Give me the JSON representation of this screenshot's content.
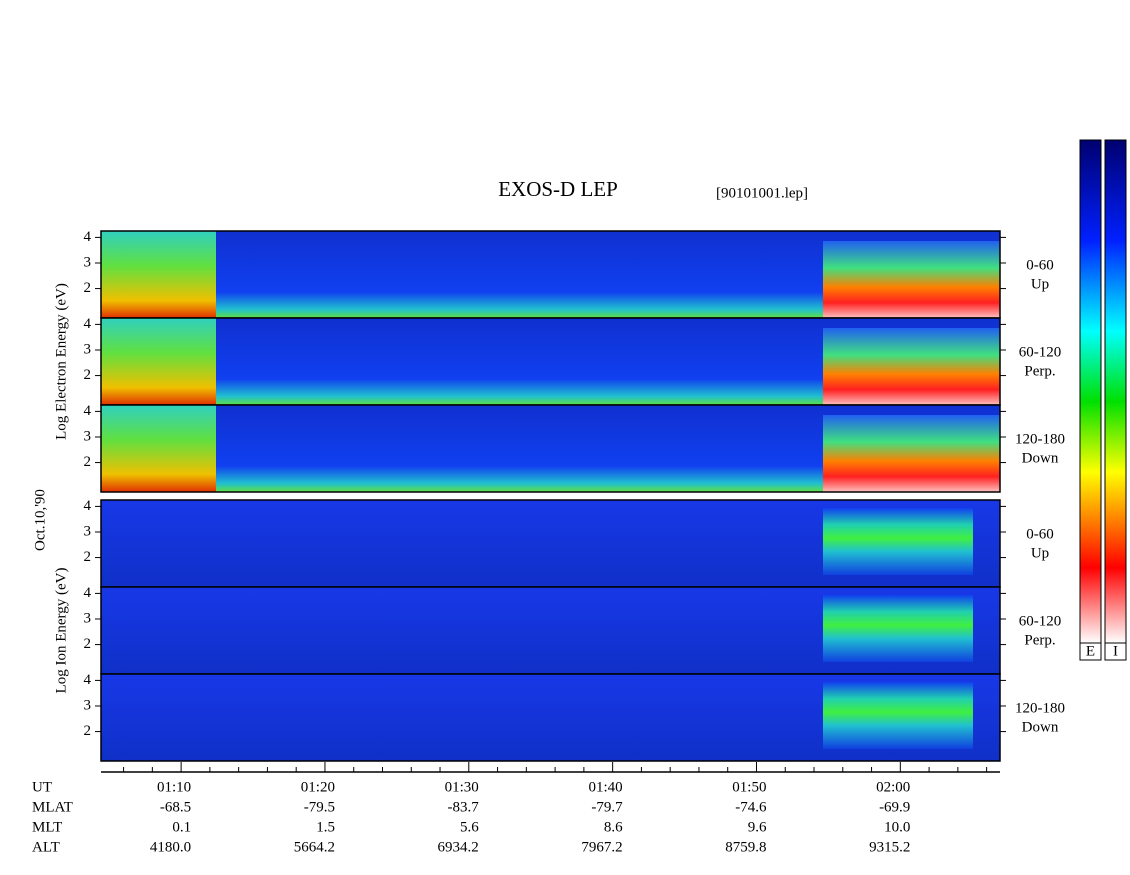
{
  "chart_data": {
    "type": "spectrogram",
    "title": "EXOS-D LEP",
    "subtitle": "[90101001.lep]",
    "date_label": "Oct.10,'90",
    "panel_groups": [
      {
        "ylabel": "Log Electron Energy (eV)",
        "panels": [
          {
            "labels": [
              "0-60",
              "Up"
            ]
          },
          {
            "labels": [
              "60-120",
              "Perp."
            ]
          },
          {
            "labels": [
              "120-180",
              "Down"
            ]
          }
        ]
      },
      {
        "ylabel": "Log Ion Energy (eV)",
        "panels": [
          {
            "labels": [
              "0-60",
              "Up"
            ]
          },
          {
            "labels": [
              "60-120",
              "Perp."
            ]
          },
          {
            "labels": [
              "120-180",
              "Down"
            ]
          }
        ]
      }
    ],
    "ylim": [
      0.85,
      4.25
    ],
    "yticks": [
      2,
      3,
      4
    ],
    "xlim": [
      64.43,
      126.93
    ],
    "xticks": [
      {
        "value": 70,
        "label": "01:10"
      },
      {
        "value": 80,
        "label": "01:20"
      },
      {
        "value": 90,
        "label": "01:30"
      },
      {
        "value": 100,
        "label": "01:40"
      },
      {
        "value": 110,
        "label": "01:50"
      },
      {
        "value": 120,
        "label": "02:00"
      }
    ],
    "xminorticks": [
      66,
      68,
      72,
      74,
      76,
      78,
      82,
      84,
      86,
      88,
      92,
      94,
      96,
      98,
      102,
      104,
      106,
      108,
      112,
      114,
      116,
      118,
      122,
      124,
      126
    ],
    "colorbar_labels": [
      "E",
      "I"
    ],
    "ephemeris": {
      "row_labels": [
        "UT",
        "MLAT",
        "MLT",
        "ALT"
      ],
      "rows": [
        [
          "-68.5",
          "-79.5",
          "-83.7",
          "-79.7",
          "-74.6",
          "-69.9"
        ],
        [
          "0.1",
          "1.5",
          "5.6",
          "8.6",
          "9.6",
          "10.0"
        ],
        [
          "4180.0",
          "5664.2",
          "6934.2",
          "7967.2",
          "8759.8",
          "9315.2"
        ]
      ]
    }
  }
}
